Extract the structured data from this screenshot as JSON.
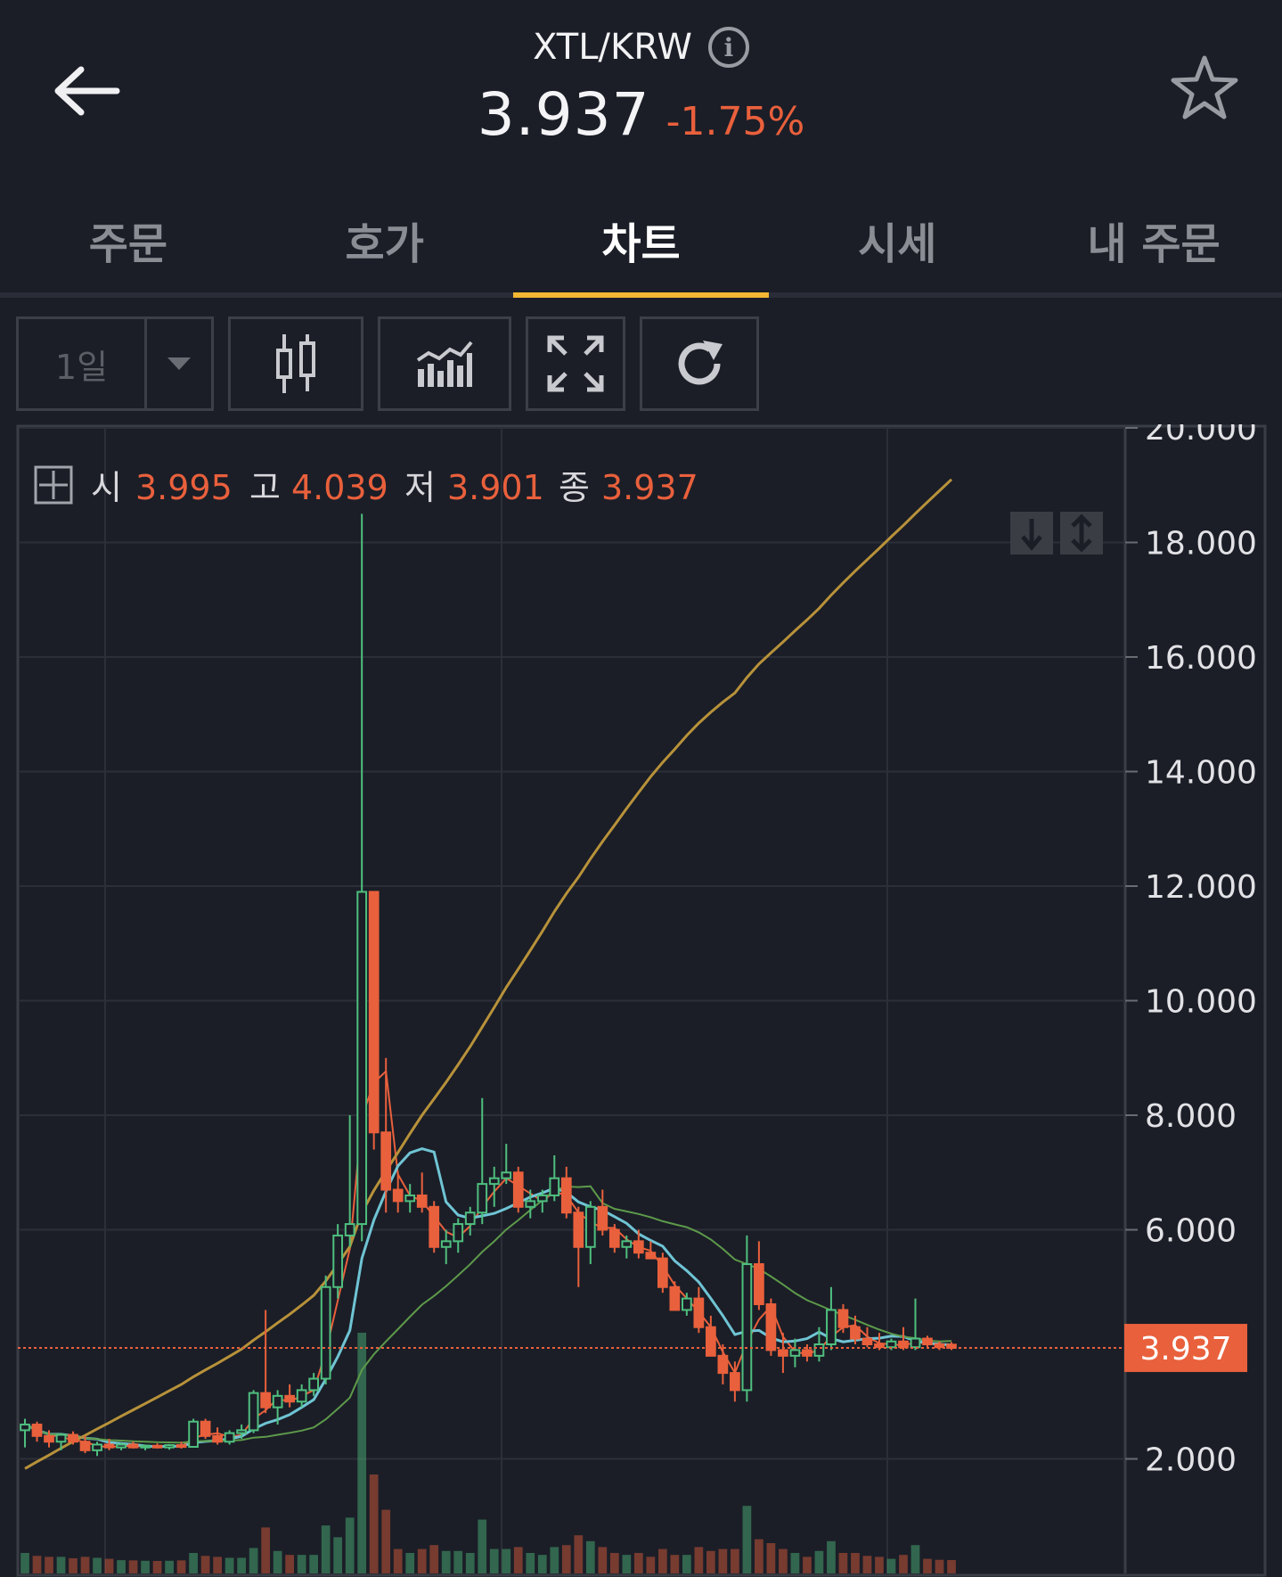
{
  "header": {
    "pair": "XTL/KRW",
    "price": "3.937",
    "change": "-1.75%"
  },
  "tabs": [
    {
      "label": "주문",
      "active": false
    },
    {
      "label": "호가",
      "active": false
    },
    {
      "label": "차트",
      "active": true
    },
    {
      "label": "시세",
      "active": false
    },
    {
      "label": "내 주문",
      "active": false
    }
  ],
  "toolbar": {
    "interval": "1일"
  },
  "ohlc": {
    "open_label": "시",
    "open": "3.995",
    "high_label": "고",
    "high": "4.039",
    "low_label": "저",
    "low": "3.901",
    "close_label": "종",
    "close": "3.937"
  },
  "colors": {
    "up": "#4fbf7f",
    "down": "#e9603c",
    "accent": "#f3b733",
    "background": "#1b1e27",
    "ma_long": "#b8923a",
    "ma_mid": "#6fc4d4"
  },
  "chart_data": {
    "type": "candlestick",
    "y_ticks": [
      "2.000",
      "6.000",
      "8.000",
      "10.000",
      "12.000",
      "14.000",
      "16.000",
      "18.000",
      "20.000"
    ],
    "ylim": [
      0,
      20000
    ],
    "last_price_label": "3.937",
    "last_price": 3937,
    "candles": [
      [
        2500,
        2700,
        2200,
        2600
      ],
      [
        2600,
        2650,
        2300,
        2400
      ],
      [
        2400,
        2500,
        2200,
        2300
      ],
      [
        2300,
        2450,
        2150,
        2420
      ],
      [
        2420,
        2480,
        2250,
        2300
      ],
      [
        2300,
        2400,
        2100,
        2150
      ],
      [
        2150,
        2300,
        2050,
        2250
      ],
      [
        2250,
        2350,
        2150,
        2200
      ],
      [
        2200,
        2280,
        2150,
        2250
      ],
      [
        2250,
        2300,
        2180,
        2200
      ],
      [
        2200,
        2250,
        2150,
        2230
      ],
      [
        2230,
        2270,
        2180,
        2200
      ],
      [
        2200,
        2260,
        2160,
        2240
      ],
      [
        2240,
        2300,
        2180,
        2210
      ],
      [
        2210,
        2700,
        2200,
        2650
      ],
      [
        2650,
        2700,
        2350,
        2400
      ],
      [
        2400,
        2550,
        2250,
        2300
      ],
      [
        2300,
        2500,
        2250,
        2450
      ],
      [
        2450,
        2600,
        2350,
        2500
      ],
      [
        2500,
        3200,
        2450,
        3150
      ],
      [
        3150,
        4600,
        2800,
        2900
      ],
      [
        2900,
        3200,
        2600,
        3100
      ],
      [
        3100,
        3300,
        2900,
        3000
      ],
      [
        3000,
        3300,
        2900,
        3200
      ],
      [
        3200,
        3500,
        3100,
        3400
      ],
      [
        3400,
        5200,
        3300,
        5000
      ],
      [
        5000,
        6100,
        4800,
        5900
      ],
      [
        5900,
        8000,
        5700,
        6100
      ],
      [
        6100,
        18500,
        5800,
        11900
      ],
      [
        11900,
        11900,
        7400,
        7700
      ],
      [
        7700,
        9000,
        6300,
        6700
      ],
      [
        6700,
        7000,
        6300,
        6500
      ],
      [
        6500,
        6800,
        6300,
        6600
      ],
      [
        6600,
        7000,
        6300,
        6400
      ],
      [
        6400,
        6500,
        5600,
        5700
      ],
      [
        5700,
        6000,
        5400,
        5800
      ],
      [
        5800,
        6200,
        5600,
        6100
      ],
      [
        6100,
        6400,
        5900,
        6300
      ],
      [
        6300,
        8300,
        6100,
        6800
      ],
      [
        6800,
        7100,
        6400,
        6900
      ],
      [
        6900,
        7500,
        6800,
        7000
      ],
      [
        7000,
        7100,
        6300,
        6400
      ],
      [
        6400,
        6700,
        6200,
        6500
      ],
      [
        6500,
        6700,
        6300,
        6600
      ],
      [
        6600,
        7300,
        6500,
        6900
      ],
      [
        6900,
        7100,
        6200,
        6300
      ],
      [
        6300,
        6400,
        5000,
        5700
      ],
      [
        5700,
        6500,
        5400,
        6400
      ],
      [
        6400,
        6700,
        5900,
        6000
      ],
      [
        6000,
        6100,
        5600,
        5700
      ],
      [
        5700,
        5900,
        5500,
        5800
      ],
      [
        5800,
        6000,
        5500,
        5600
      ],
      [
        5600,
        5800,
        5500,
        5500
      ],
      [
        5500,
        5600,
        4900,
        5000
      ],
      [
        5000,
        5100,
        4700,
        4600
      ],
      [
        4600,
        4900,
        4500,
        4800
      ],
      [
        4800,
        5000,
        4200,
        4300
      ],
      [
        4300,
        4500,
        3900,
        3800
      ],
      [
        3800,
        4000,
        3300,
        3500
      ],
      [
        3500,
        3700,
        3000,
        3200
      ],
      [
        3200,
        5900,
        3000,
        5400
      ],
      [
        5400,
        5800,
        4600,
        4700
      ],
      [
        4700,
        4800,
        3800,
        3900
      ],
      [
        3900,
        4200,
        3500,
        3800
      ],
      [
        3800,
        4100,
        3600,
        3900
      ],
      [
        3900,
        4000,
        3700,
        3800
      ],
      [
        3800,
        4300,
        3700,
        4000
      ],
      [
        4000,
        5000,
        3900,
        4600
      ],
      [
        4600,
        4700,
        4200,
        4300
      ],
      [
        4300,
        4500,
        4000,
        4100
      ],
      [
        4100,
        4300,
        3950,
        4000
      ],
      [
        4000,
        4200,
        3900,
        3950
      ],
      [
        3950,
        4100,
        3900,
        4050
      ],
      [
        4050,
        4300,
        3900,
        3950
      ],
      [
        3950,
        4800,
        3900,
        4100
      ],
      [
        4100,
        4150,
        3950,
        4000
      ],
      [
        4000,
        4050,
        3900,
        3950
      ],
      [
        3995,
        4039,
        3901,
        3937
      ]
    ]
  }
}
